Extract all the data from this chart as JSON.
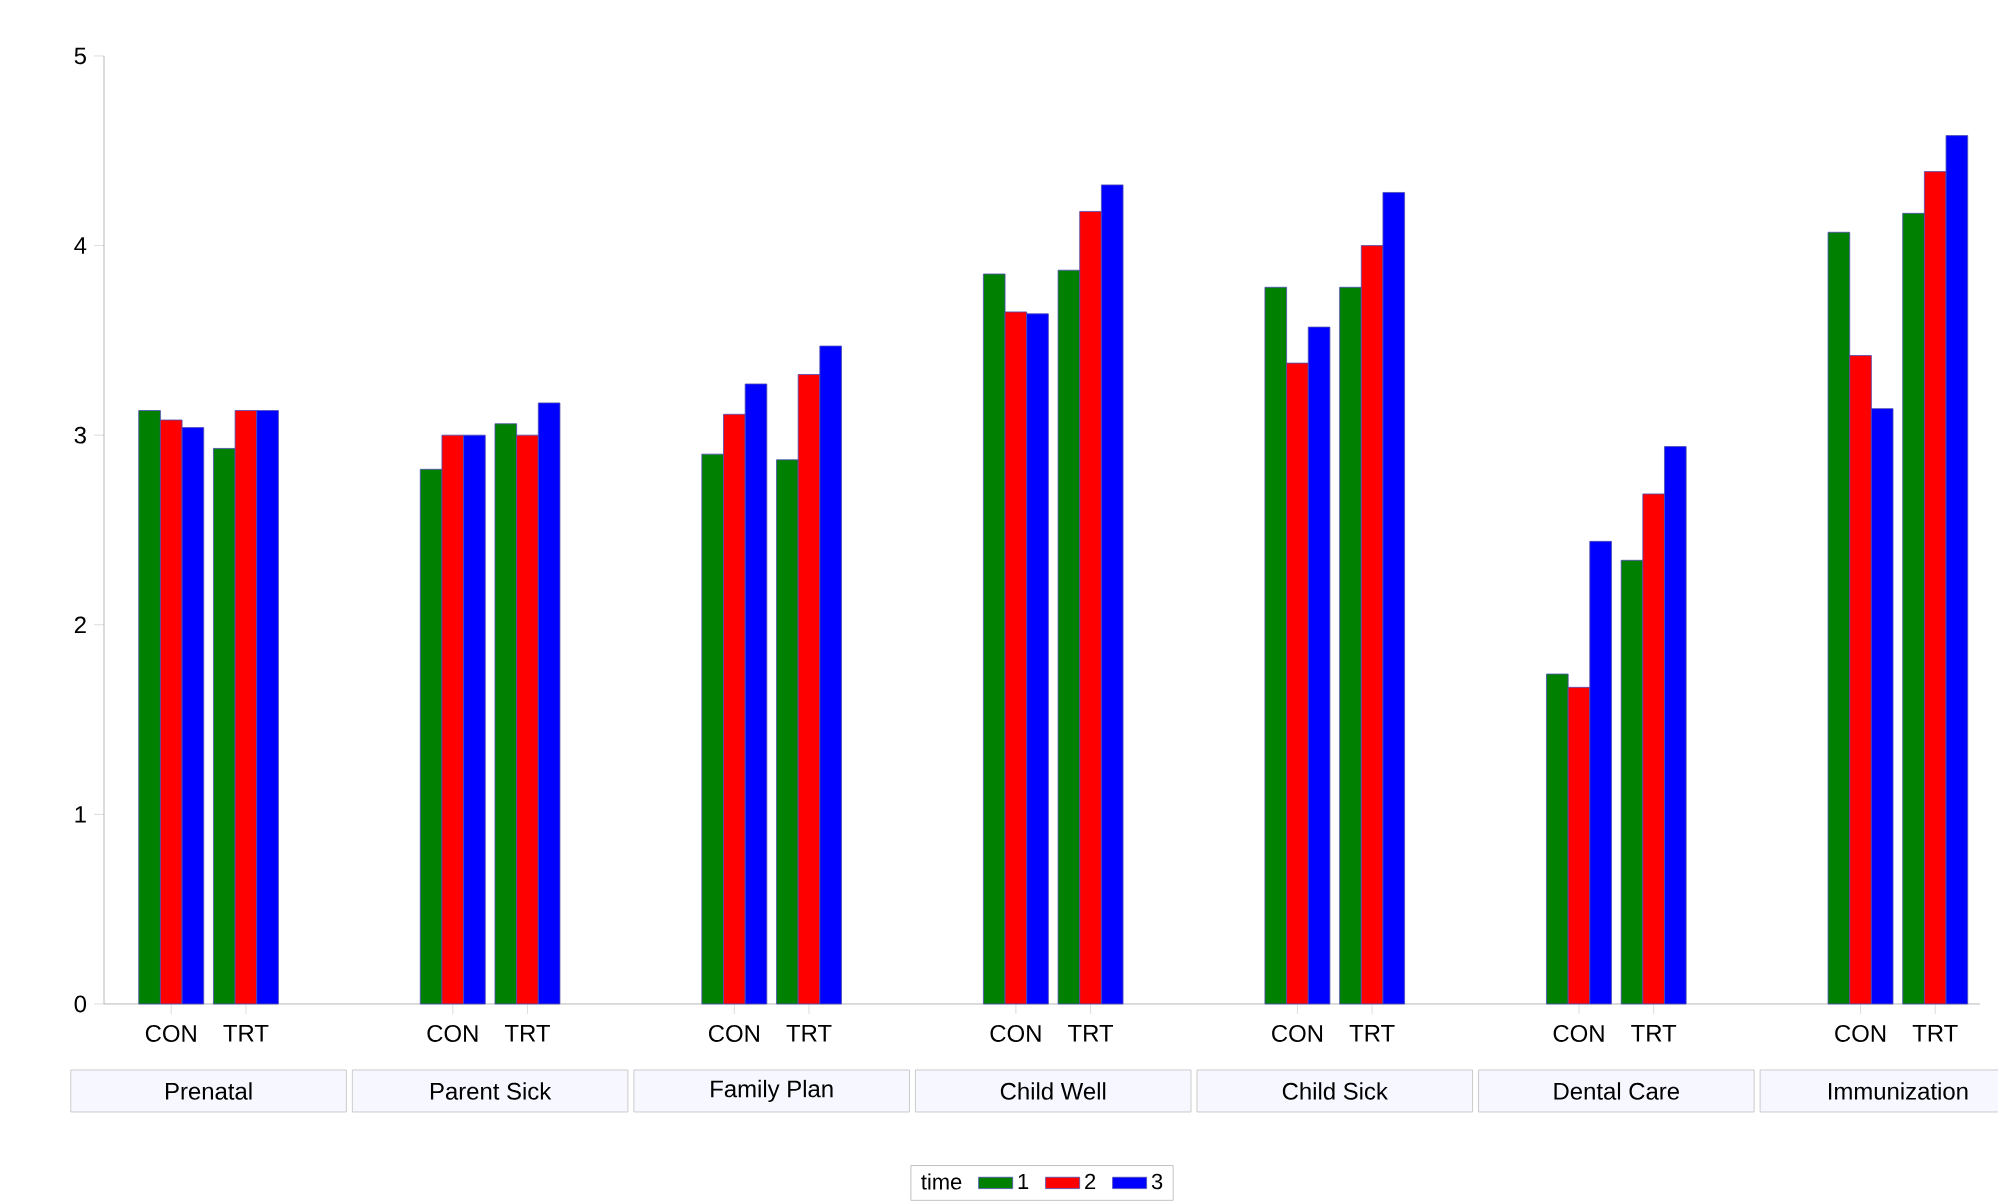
{
  "chart_data": {
    "type": "bar",
    "categories": [
      "CON",
      "TRT",
      "CON",
      "TRT",
      "CON",
      "TRT",
      "CON",
      "TRT",
      "CON",
      "TRT",
      "CON",
      "TRT",
      "CON",
      "TRT"
    ],
    "series": [
      {
        "name": "1",
        "color": "#008000",
        "values": [
          3.13,
          2.93,
          2.82,
          3.06,
          2.9,
          2.87,
          3.85,
          3.87,
          3.78,
          3.78,
          1.74,
          2.34,
          4.07,
          4.17
        ]
      },
      {
        "name": "2",
        "color": "#ff0000",
        "values": [
          3.08,
          3.13,
          3.0,
          3.0,
          3.11,
          3.32,
          3.65,
          4.18,
          3.38,
          4.0,
          1.67,
          2.69,
          3.42,
          4.39
        ]
      },
      {
        "name": "3",
        "color": "#0000ff",
        "values": [
          3.04,
          3.13,
          3.0,
          3.17,
          3.27,
          3.47,
          3.64,
          4.32,
          3.57,
          4.28,
          2.44,
          2.94,
          3.14,
          4.58
        ]
      }
    ],
    "annotations": [
      "Prenatal",
      "Parent Sick",
      "Family Plan",
      "Child Well",
      "Child Sick",
      "Dental Care",
      "Immunization"
    ],
    "legend_title": "time",
    "legend": "bottom",
    "grid": false,
    "ylim": [
      0,
      5
    ],
    "yticks": [
      0,
      1,
      2,
      3,
      4,
      5
    ]
  }
}
